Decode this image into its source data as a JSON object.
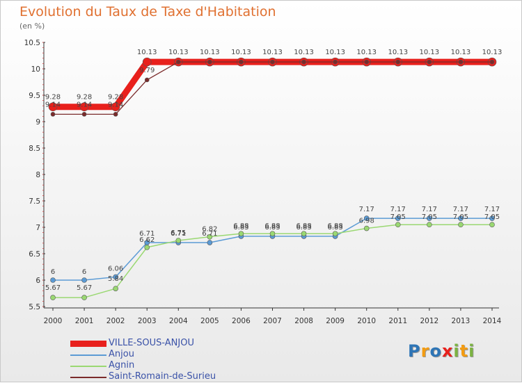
{
  "header": {
    "title": "Evolution du Taux de Taxe d'Habitation",
    "subtitle": "(en %)"
  },
  "chart_data": {
    "type": "line",
    "title": "Evolution du Taux de Taxe d'Habitation",
    "ylabel": "(en %)",
    "xlabel": "",
    "x": [
      2000,
      2001,
      2002,
      2003,
      2004,
      2005,
      2006,
      2007,
      2008,
      2009,
      2010,
      2011,
      2012,
      2013,
      2014
    ],
    "ylim": [
      5.5,
      10.5
    ],
    "yticks": [
      "5.5",
      "6",
      "6.5",
      "7",
      "7.5",
      "8",
      "8.5",
      "9",
      "9.5",
      "10",
      "10.5"
    ],
    "grid": false,
    "legend_position": "bottom-left",
    "series": [
      {
        "name": "VILLE-SOUS-ANJOU",
        "color": "#e8201c",
        "values": [
          9.28,
          9.28,
          9.28,
          10.13,
          10.13,
          10.13,
          10.13,
          10.13,
          10.13,
          10.13,
          10.13,
          10.13,
          10.13,
          10.13,
          10.13
        ],
        "labels": [
          "9.28",
          "9.28",
          "9.28",
          "10.13",
          "10.13",
          "10.13",
          "10.13",
          "10.13",
          "10.13",
          "10.13",
          "10.13",
          "10.13",
          "10.13",
          "10.13",
          "10.13"
        ]
      },
      {
        "name": "Anjou",
        "color": "#5b9bd5",
        "values": [
          6.0,
          6.0,
          6.06,
          6.71,
          6.71,
          6.71,
          6.83,
          6.83,
          6.83,
          6.83,
          7.17,
          7.17,
          7.17,
          7.17,
          7.17
        ],
        "labels": [
          "6",
          "6",
          "6.06",
          "6.71",
          "6.71",
          "6.71",
          "6.83",
          "6.83",
          "6.83",
          "6.83",
          "7.17",
          "7.17",
          "7.17",
          "7.17",
          "7.17"
        ]
      },
      {
        "name": "Agnin",
        "color": "#9ad872",
        "values": [
          5.67,
          5.67,
          5.84,
          6.62,
          6.75,
          6.82,
          6.88,
          6.88,
          6.88,
          6.88,
          6.98,
          7.05,
          7.05,
          7.05,
          7.05
        ],
        "labels": [
          "5.67",
          "5.67",
          "5.84",
          "6.62",
          "6.75",
          "6.82",
          "6.88",
          "6.88",
          "6.88",
          "6.88",
          "6.98",
          "7.05",
          "7.05",
          "7.05",
          "7.05"
        ]
      },
      {
        "name": "Saint-Romain-de-Surieu",
        "color": "#7a2a2a",
        "values": [
          9.14,
          9.14,
          9.14,
          9.79,
          10.13,
          10.13,
          10.13,
          10.13,
          10.13,
          10.13,
          10.13,
          10.13,
          10.13,
          10.13,
          10.13
        ],
        "labels": [
          "9.14",
          "9.14",
          "9.14",
          "9.79",
          "",
          "",
          "",
          "",
          "",
          "",
          "",
          "",
          "",
          "",
          ""
        ]
      }
    ]
  },
  "legend": {
    "items": [
      {
        "label": "VILLE-SOUS-ANJOU"
      },
      {
        "label": "Anjou"
      },
      {
        "label": "Agnin"
      },
      {
        "label": "Saint-Romain-de-Surieu"
      }
    ]
  },
  "logo": {
    "text": "Proxiti"
  }
}
